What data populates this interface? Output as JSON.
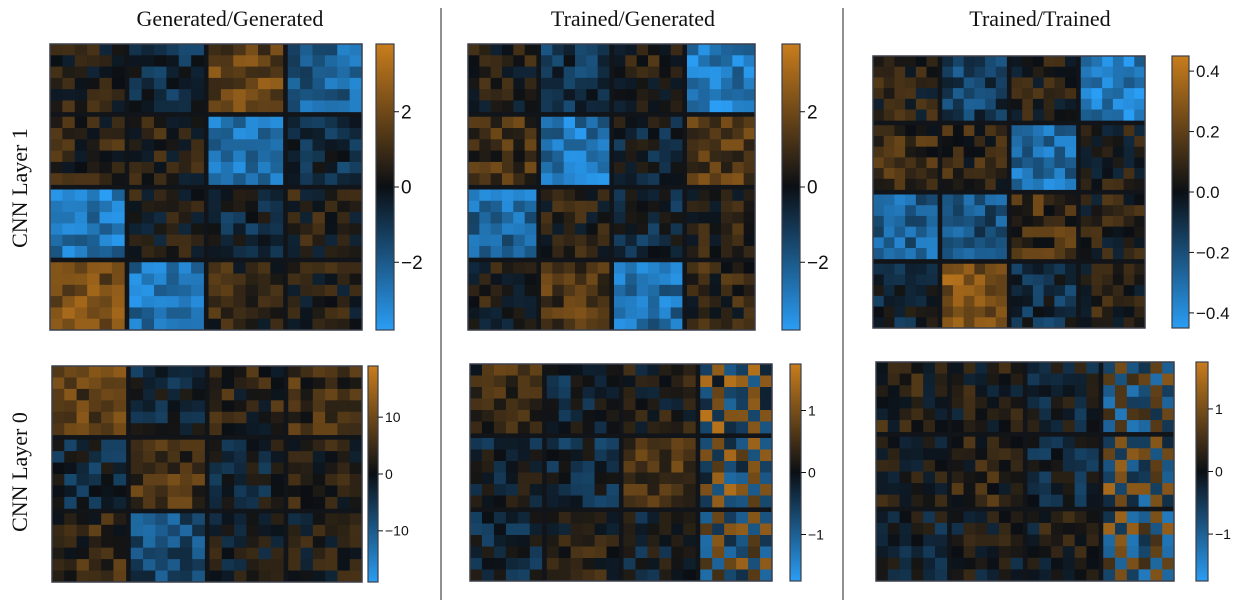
{
  "figure": {
    "column_titles": [
      "Generated/Generated",
      "Trained/Generated",
      "Trained/Trained"
    ],
    "row_labels": [
      "CNN Layer 1",
      "CNN Layer 0"
    ]
  },
  "colors": {
    "positive": "#c97d1c",
    "zero": "#0b0f14",
    "negative": "#2a9df4",
    "frame": "#3a3f4a"
  },
  "chart_data": [
    {
      "type": "heatmap",
      "id": "layer1-gen-gen",
      "column": "Generated/Generated",
      "row": "CNN Layer 1",
      "block_grid": [
        4,
        4
      ],
      "block_size": 6,
      "value_range": [
        -3.8,
        3.8
      ],
      "colorbar": {
        "ticks": [
          2,
          0,
          -2
        ],
        "tick_labels": [
          "2",
          "0",
          "−2"
        ]
      },
      "block_means": [
        [
          0.4,
          -0.6,
          1.8,
          -2.2
        ],
        [
          0.6,
          0.5,
          -2.5,
          -0.7
        ],
        [
          -2.8,
          0.3,
          -0.5,
          0.4
        ],
        [
          2.1,
          -2.6,
          0.6,
          0.3
        ]
      ]
    },
    {
      "type": "heatmap",
      "id": "layer1-trained-gen",
      "column": "Trained/Generated",
      "row": "CNN Layer 1",
      "block_grid": [
        4,
        4
      ],
      "block_size": 6,
      "value_range": [
        -3.8,
        3.8
      ],
      "colorbar": {
        "ticks": [
          2,
          0,
          -2
        ],
        "tick_labels": [
          "2",
          "0",
          "−2"
        ]
      },
      "block_means": [
        [
          0.3,
          -0.9,
          0.5,
          -2.9
        ],
        [
          1.1,
          -2.7,
          -0.3,
          1.4
        ],
        [
          -2.4,
          0.4,
          -0.6,
          0.5
        ],
        [
          0.3,
          1.3,
          -2.6,
          0.7
        ]
      ]
    },
    {
      "type": "heatmap",
      "id": "layer1-trained-trained",
      "column": "Trained/Trained",
      "row": "CNN Layer 1",
      "block_grid": [
        4,
        4
      ],
      "block_size": 6,
      "value_range": [
        -0.45,
        0.45
      ],
      "colorbar": {
        "ticks": [
          0.4,
          0.2,
          0.0,
          -0.2,
          -0.4
        ],
        "tick_labels": [
          "0.4",
          "0.2",
          "0.0",
          "−0.2",
          "−0.4"
        ]
      },
      "block_means": [
        [
          0.05,
          -0.15,
          0.05,
          -0.35
        ],
        [
          0.1,
          0.08,
          -0.3,
          0.04
        ],
        [
          -0.25,
          -0.2,
          0.12,
          0.05
        ],
        [
          -0.05,
          0.28,
          -0.08,
          0.06
        ]
      ]
    },
    {
      "type": "heatmap",
      "id": "layer0-gen-gen",
      "column": "Generated/Generated",
      "row": "CNN Layer 0",
      "block_grid": [
        3,
        4
      ],
      "block_size": 6,
      "value_range": [
        -19,
        19
      ],
      "colorbar": {
        "ticks": [
          10,
          0,
          -10
        ],
        "tick_labels": [
          "10",
          "0",
          "−10"
        ]
      },
      "block_means": [
        [
          8,
          -2,
          3,
          5
        ],
        [
          -3,
          6,
          -1,
          2
        ],
        [
          4,
          -8,
          0,
          1
        ]
      ]
    },
    {
      "type": "heatmap",
      "id": "layer0-trained-gen",
      "column": "Trained/Generated",
      "row": "CNN Layer 0",
      "block_grid": [
        3,
        4
      ],
      "block_size": 6,
      "value_range": [
        -1.75,
        1.75
      ],
      "colorbar": {
        "ticks": [
          1,
          0,
          -1
        ],
        "tick_labels": [
          "1",
          "0",
          "−1"
        ]
      },
      "block_means": [
        [
          0.4,
          -0.2,
          0.1,
          0.3
        ],
        [
          -0.1,
          -0.3,
          0.6,
          0.2
        ],
        [
          -0.2,
          0.2,
          -0.1,
          0.1
        ]
      ]
    },
    {
      "type": "heatmap",
      "id": "layer0-trained-trained",
      "column": "Trained/Trained",
      "row": "CNN Layer 0",
      "block_grid": [
        3,
        4
      ],
      "block_size": 6,
      "value_range": [
        -1.75,
        1.75
      ],
      "colorbar": {
        "ticks": [
          1,
          0,
          -1
        ],
        "tick_labels": [
          "1",
          "0",
          "−1"
        ]
      },
      "block_means": [
        [
          0.2,
          0.1,
          -0.1,
          0.0
        ],
        [
          0.1,
          0.3,
          -0.2,
          0.1
        ],
        [
          -0.1,
          0.0,
          0.1,
          0.0
        ]
      ]
    }
  ]
}
